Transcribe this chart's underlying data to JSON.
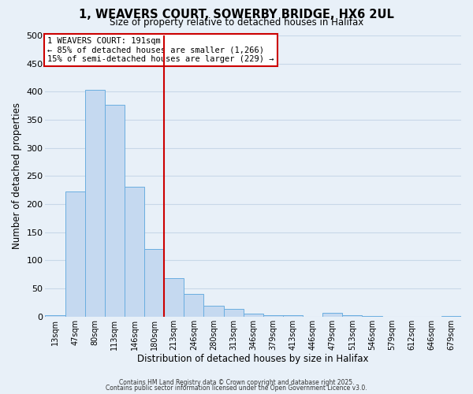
{
  "title": "1, WEAVERS COURT, SOWERBY BRIDGE, HX6 2UL",
  "subtitle": "Size of property relative to detached houses in Halifax",
  "xlabel": "Distribution of detached houses by size in Halifax",
  "ylabel": "Number of detached properties",
  "bar_labels": [
    "13sqm",
    "47sqm",
    "80sqm",
    "113sqm",
    "146sqm",
    "180sqm",
    "213sqm",
    "246sqm",
    "280sqm",
    "313sqm",
    "346sqm",
    "379sqm",
    "413sqm",
    "446sqm",
    "479sqm",
    "513sqm",
    "546sqm",
    "579sqm",
    "612sqm",
    "646sqm",
    "679sqm"
  ],
  "bar_values": [
    2,
    222,
    403,
    377,
    231,
    120,
    68,
    40,
    20,
    14,
    5,
    3,
    3,
    0,
    7,
    2,
    1,
    0,
    0,
    0,
    1
  ],
  "bar_color": "#c5d9f0",
  "bar_edge_color": "#6aaee0",
  "vline_x": 5.5,
  "vline_color": "#cc0000",
  "annotation_text": "1 WEAVERS COURT: 191sqm\n← 85% of detached houses are smaller (1,266)\n15% of semi-detached houses are larger (229) →",
  "annotation_box_color": "#ffffff",
  "annotation_box_edge": "#cc0000",
  "ylim": [
    0,
    500
  ],
  "yticks": [
    0,
    50,
    100,
    150,
    200,
    250,
    300,
    350,
    400,
    450,
    500
  ],
  "grid_color": "#c8d8e8",
  "background_color": "#e8f0f8",
  "footer_line1": "Contains HM Land Registry data © Crown copyright and database right 2025.",
  "footer_line2": "Contains public sector information licensed under the Open Government Licence v3.0."
}
